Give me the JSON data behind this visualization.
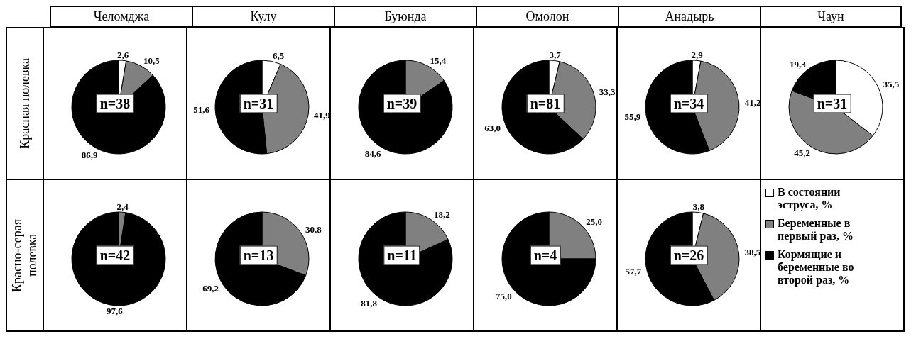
{
  "chart_data": [
    {
      "type": "pie",
      "title": "Челомджа",
      "ylabel": "Красная полевка",
      "values": [
        2.6,
        10.5,
        86.9
      ],
      "value_labels": [
        "2,6",
        "10,5",
        "86,9"
      ],
      "colors": [
        "#ffffff",
        "#808080",
        "#000000"
      ],
      "annotations": [
        "n=38"
      ]
    },
    {
      "type": "pie",
      "title": "Кулу",
      "values": [
        6.5,
        41.9,
        51.6
      ],
      "value_labels": [
        "6,5",
        "41,9",
        "51,6"
      ],
      "colors": [
        "#ffffff",
        "#808080",
        "#000000"
      ],
      "annotations": [
        "n=31"
      ]
    },
    {
      "type": "pie",
      "title": "Буюнда",
      "values": [
        0,
        15.4,
        84.6
      ],
      "value_labels": [
        null,
        "15,4",
        "84,6"
      ],
      "colors": [
        "#ffffff",
        "#808080",
        "#000000"
      ],
      "annotations": [
        "n=39"
      ]
    },
    {
      "type": "pie",
      "title": "Омолон",
      "values": [
        3.7,
        33.3,
        63.0
      ],
      "value_labels": [
        "3,7",
        "33,3",
        "63,0"
      ],
      "colors": [
        "#ffffff",
        "#808080",
        "#000000"
      ],
      "annotations": [
        "n=81"
      ]
    },
    {
      "type": "pie",
      "title": "Анадырь",
      "values": [
        2.9,
        41.2,
        55.9
      ],
      "value_labels": [
        "2,9",
        "41,2",
        "55,9"
      ],
      "colors": [
        "#ffffff",
        "#808080",
        "#000000"
      ],
      "annotations": [
        "n=34"
      ]
    },
    {
      "type": "pie",
      "title": "Чаун",
      "values": [
        35.5,
        45.2,
        19.3
      ],
      "value_labels": [
        "35,5",
        "45,2",
        "19,3"
      ],
      "colors": [
        "#ffffff",
        "#808080",
        "#000000"
      ],
      "annotations": [
        "n=31"
      ]
    },
    {
      "type": "pie",
      "ylabel": "Красно-серая полевка",
      "values": [
        0,
        2.4,
        97.6
      ],
      "value_labels": [
        null,
        "2,4",
        "97,6"
      ],
      "colors": [
        "#ffffff",
        "#808080",
        "#000000"
      ],
      "annotations": [
        "n=42"
      ]
    },
    {
      "type": "pie",
      "values": [
        0,
        30.8,
        69.2
      ],
      "value_labels": [
        null,
        "30,8",
        "69,2"
      ],
      "colors": [
        "#ffffff",
        "#808080",
        "#000000"
      ],
      "annotations": [
        "n=13"
      ]
    },
    {
      "type": "pie",
      "values": [
        0,
        18.2,
        81.8
      ],
      "value_labels": [
        null,
        "18,2",
        "81,8"
      ],
      "colors": [
        "#ffffff",
        "#808080",
        "#000000"
      ],
      "annotations": [
        "n=11"
      ]
    },
    {
      "type": "pie",
      "values": [
        0,
        25.0,
        75.0
      ],
      "value_labels": [
        null,
        "25,0",
        "75,0"
      ],
      "colors": [
        "#ffffff",
        "#808080",
        "#000000"
      ],
      "annotations": [
        "n=4"
      ]
    },
    {
      "type": "pie",
      "legend": "right",
      "categories": [
        "В состоянии эструса, %",
        "Беременные в первый раз, %",
        "Кормящие и беременные во второй раз, %"
      ],
      "values": [
        3.8,
        38.5,
        57.7
      ],
      "value_labels": [
        "3,8",
        "38,5",
        "57,7"
      ],
      "colors": [
        "#ffffff",
        "#808080",
        "#000000"
      ],
      "annotations": [
        "n=26"
      ]
    }
  ]
}
